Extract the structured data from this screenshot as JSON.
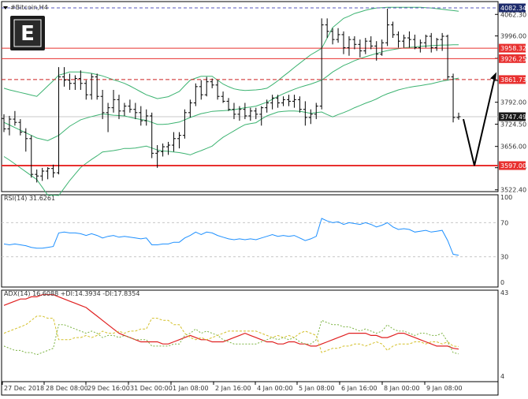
{
  "window": {
    "title": "#Bitcoin,H4"
  },
  "logo": {
    "letter": "E"
  },
  "colors": {
    "background": "#ffffff",
    "frame": "#000000",
    "grid": "#c8c8c8",
    "candle": "#000000",
    "bollinger": "#3cb371",
    "level_line": "#e8302f",
    "level_dashed": "#cc2222",
    "top_line": "#5555bb",
    "rsi_line": "#1e90ff",
    "adx_line": "#e02020",
    "di_plus": "#7cb342",
    "di_minus": "#d4c02a",
    "label_red": "#e8302f",
    "label_dark": "#1a1a1a",
    "label_navy": "#1c2a6b",
    "arrow": "#000000"
  },
  "chart_data": [
    {
      "type": "candlestick",
      "title": "#Bitcoin,H4",
      "ylim": [
        3500,
        4100
      ],
      "y_ticks": [
        "4062.30",
        "3996.00",
        "3927.00",
        "3858.75",
        "3792.00",
        "3724.50",
        "3656.00",
        "3590.50",
        "3522.40"
      ],
      "x_ticks": [
        "27 Dec 2018",
        "28 Dec 08:00",
        "29 Dec 16:00",
        "31 Dec 00:00",
        "1 Jan 08:00",
        "2 Jan 16:00",
        "4 Jan 00:00",
        "5 Jan 08:00",
        "6 Jan 16:00",
        "8 Jan 00:00",
        "9 Jan 08:00"
      ],
      "ohlc": [
        [
          3742,
          3755,
          3700,
          3710
        ],
        [
          3710,
          3750,
          3690,
          3740
        ],
        [
          3740,
          3765,
          3720,
          3730
        ],
        [
          3730,
          3740,
          3690,
          3700
        ],
        [
          3700,
          3712,
          3640,
          3680
        ],
        [
          3680,
          3690,
          3560,
          3570
        ],
        [
          3570,
          3585,
          3545,
          3565
        ],
        [
          3565,
          3590,
          3550,
          3580
        ],
        [
          3580,
          3592,
          3555,
          3588
        ],
        [
          3588,
          3600,
          3560,
          3575
        ],
        [
          3575,
          3900,
          3570,
          3870
        ],
        [
          3870,
          3900,
          3840,
          3860
        ],
        [
          3860,
          3880,
          3830,
          3850
        ],
        [
          3850,
          3875,
          3830,
          3865
        ],
        [
          3865,
          3890,
          3830,
          3850
        ],
        [
          3850,
          3860,
          3800,
          3815
        ],
        [
          3815,
          3880,
          3800,
          3870
        ],
        [
          3870,
          3880,
          3800,
          3810
        ],
        [
          3810,
          3830,
          3740,
          3760
        ],
        [
          3760,
          3790,
          3700,
          3775
        ],
        [
          3775,
          3830,
          3760,
          3800
        ],
        [
          3800,
          3815,
          3740,
          3765
        ],
        [
          3765,
          3790,
          3750,
          3780
        ],
        [
          3780,
          3800,
          3760,
          3770
        ],
        [
          3770,
          3790,
          3740,
          3760
        ],
        [
          3760,
          3780,
          3720,
          3735
        ],
        [
          3735,
          3770,
          3720,
          3750
        ],
        [
          3750,
          3760,
          3620,
          3635
        ],
        [
          3635,
          3660,
          3590,
          3640
        ],
        [
          3640,
          3665,
          3625,
          3655
        ],
        [
          3655,
          3670,
          3630,
          3660
        ],
        [
          3660,
          3700,
          3640,
          3680
        ],
        [
          3680,
          3700,
          3650,
          3690
        ],
        [
          3690,
          3770,
          3680,
          3760
        ],
        [
          3760,
          3800,
          3745,
          3790
        ],
        [
          3790,
          3850,
          3780,
          3840
        ],
        [
          3840,
          3860,
          3800,
          3815
        ],
        [
          3815,
          3870,
          3810,
          3855
        ],
        [
          3855,
          3865,
          3835,
          3845
        ],
        [
          3845,
          3860,
          3800,
          3810
        ],
        [
          3810,
          3825,
          3790,
          3795
        ],
        [
          3795,
          3805,
          3765,
          3770
        ],
        [
          3770,
          3790,
          3740,
          3755
        ],
        [
          3755,
          3780,
          3735,
          3770
        ],
        [
          3770,
          3790,
          3740,
          3750
        ],
        [
          3750,
          3775,
          3735,
          3765
        ],
        [
          3765,
          3775,
          3740,
          3755
        ],
        [
          3755,
          3780,
          3720,
          3775
        ],
        [
          3775,
          3800,
          3760,
          3790
        ],
        [
          3790,
          3815,
          3770,
          3805
        ],
        [
          3805,
          3815,
          3775,
          3790
        ],
        [
          3790,
          3810,
          3780,
          3800
        ],
        [
          3800,
          3815,
          3780,
          3795
        ],
        [
          3795,
          3815,
          3775,
          3800
        ],
        [
          3800,
          3810,
          3760,
          3770
        ],
        [
          3770,
          3795,
          3720,
          3745
        ],
        [
          3745,
          3770,
          3725,
          3755
        ],
        [
          3755,
          3790,
          3740,
          3780
        ],
        [
          3780,
          4050,
          3770,
          4030
        ],
        [
          4030,
          4050,
          3990,
          4010
        ],
        [
          4010,
          4020,
          3970,
          3985
        ],
        [
          3985,
          4020,
          3975,
          4000
        ],
        [
          4000,
          4010,
          3940,
          3960
        ],
        [
          3960,
          3995,
          3935,
          3985
        ],
        [
          3985,
          3995,
          3955,
          3970
        ],
        [
          3970,
          3985,
          3930,
          3950
        ],
        [
          3950,
          3990,
          3940,
          3980
        ],
        [
          3980,
          3995,
          3955,
          3965
        ],
        [
          3965,
          3980,
          3920,
          3940
        ],
        [
          3940,
          3985,
          3935,
          3975
        ],
        [
          3975,
          4080,
          3965,
          4030
        ],
        [
          4030,
          4040,
          3990,
          4000
        ],
        [
          4000,
          4010,
          3960,
          3980
        ],
        [
          3980,
          4000,
          3960,
          3990
        ],
        [
          3990,
          4010,
          3960,
          3985
        ],
        [
          3985,
          4000,
          3955,
          3960
        ],
        [
          3960,
          3985,
          3945,
          3975
        ],
        [
          3975,
          4000,
          3960,
          3995
        ],
        [
          3995,
          4005,
          3945,
          3960
        ],
        [
          3960,
          3990,
          3950,
          3985
        ],
        [
          3985,
          4005,
          3950,
          3995
        ],
        [
          3995,
          4000,
          3860,
          3870
        ],
        [
          3870,
          3880,
          3730,
          3745
        ],
        [
          3745,
          3760,
          3738,
          3747.49
        ]
      ],
      "bollinger": {
        "upper": [
          3835,
          3830,
          3826,
          3822,
          3818,
          3814,
          3810,
          3826,
          3842,
          3858,
          3875,
          3880,
          3885,
          3885,
          3885,
          3883,
          3881,
          3877,
          3873,
          3867,
          3861,
          3856,
          3850,
          3842,
          3833,
          3824,
          3815,
          3809,
          3803,
          3806,
          3809,
          3817,
          3825,
          3843,
          3860,
          3866,
          3872,
          3872,
          3872,
          3860,
          3848,
          3840,
          3833,
          3830,
          3828,
          3829,
          3830,
          3832,
          3835,
          3846,
          3858,
          3872,
          3885,
          3899,
          3912,
          3925,
          3938,
          3948,
          3958,
          3990,
          4022,
          4036,
          4050,
          4057,
          4065,
          4070,
          4075,
          4079,
          4082,
          4083,
          4084,
          4084,
          4084,
          4084,
          4084,
          4084,
          4084,
          4083,
          4082,
          4080,
          4078,
          4076,
          4074,
          4072
        ],
        "middle": [
          3730,
          3722,
          3714,
          3706,
          3698,
          3690,
          3682,
          3678,
          3674,
          3682,
          3690,
          3704,
          3718,
          3728,
          3738,
          3743,
          3748,
          3752,
          3756,
          3754,
          3752,
          3751,
          3750,
          3746,
          3742,
          3739,
          3736,
          3730,
          3724,
          3724,
          3725,
          3728,
          3731,
          3738,
          3745,
          3751,
          3757,
          3760,
          3764,
          3765,
          3766,
          3767,
          3769,
          3772,
          3775,
          3777,
          3780,
          3786,
          3792,
          3801,
          3810,
          3818,
          3825,
          3832,
          3838,
          3843,
          3848,
          3854,
          3860,
          3872,
          3885,
          3895,
          3905,
          3912,
          3920,
          3926,
          3932,
          3937,
          3942,
          3947,
          3951,
          3954,
          3957,
          3959,
          3961,
          3962,
          3964,
          3965,
          3966,
          3967,
          3968,
          3968,
          3969,
          3969
        ],
        "lower": [
          3625,
          3614,
          3602,
          3590,
          3578,
          3566,
          3554,
          3530,
          3506,
          3506,
          3505,
          3528,
          3551,
          3571,
          3591,
          3604,
          3616,
          3627,
          3639,
          3641,
          3643,
          3646,
          3650,
          3650,
          3651,
          3654,
          3657,
          3651,
          3645,
          3642,
          3641,
          3639,
          3637,
          3634,
          3630,
          3637,
          3643,
          3650,
          3657,
          3671,
          3684,
          3694,
          3704,
          3714,
          3723,
          3726,
          3729,
          3740,
          3750,
          3756,
          3762,
          3764,
          3765,
          3765,
          3764,
          3761,
          3758,
          3760,
          3762,
          3754,
          3747,
          3754,
          3760,
          3767,
          3775,
          3782,
          3789,
          3795,
          3802,
          3811,
          3818,
          3824,
          3830,
          3834,
          3838,
          3841,
          3843,
          3846,
          3849,
          3853,
          3857,
          3860,
          3863,
          3866
        ]
      },
      "levels": [
        {
          "price": 4082.34,
          "label": "4082.34",
          "style": "dotted"
        },
        {
          "price": 3958.32,
          "label": "3958.32",
          "style": "solid"
        },
        {
          "price": 3926.25,
          "label": "3926.25",
          "style": "solid"
        },
        {
          "price": 3861.73,
          "label": "3861.73",
          "style": "dashed"
        },
        {
          "price": 3747.49,
          "label": "3747.49",
          "style": "current"
        },
        {
          "price": 3597.0,
          "label": "3597.00",
          "style": "solid"
        }
      ],
      "forecast": {
        "from": 3740,
        "via": 3597,
        "to": 3870
      }
    },
    {
      "type": "line",
      "title": "RSI(14)",
      "value_text": "31.6261",
      "ylim": [
        0,
        100
      ],
      "y_ticks": [
        "100",
        "70",
        "30",
        "0"
      ],
      "levels": [
        70,
        30
      ],
      "series": [
        {
          "name": "RSI(14)",
          "values": [
            45,
            44,
            45,
            44,
            43,
            41,
            40,
            40,
            41,
            42,
            58,
            59,
            58,
            58,
            57,
            55,
            57,
            55,
            52,
            54,
            55,
            53,
            54,
            53,
            52,
            51,
            52,
            44,
            44,
            45,
            45,
            47,
            47,
            52,
            55,
            59,
            56,
            59,
            58,
            55,
            53,
            51,
            50,
            51,
            50,
            51,
            50,
            52,
            54,
            56,
            54,
            55,
            54,
            55,
            52,
            49,
            51,
            54,
            75,
            72,
            70,
            71,
            68,
            70,
            69,
            68,
            70,
            68,
            65,
            67,
            70,
            65,
            62,
            63,
            62,
            59,
            60,
            61,
            59,
            60,
            61,
            49,
            33,
            31.63
          ]
        }
      ]
    },
    {
      "type": "line",
      "title": "ADX(14) 16.6088 +DI:14.3934 -DI:17.8354",
      "ylim": [
        4,
        43
      ],
      "y_ticks": [
        "43",
        "4"
      ],
      "series": [
        {
          "name": "ADX(14)",
          "values": [
            37,
            38,
            39,
            40,
            40,
            41,
            41,
            42,
            42,
            42,
            41,
            40,
            39,
            38,
            37,
            36,
            34,
            32,
            30,
            28,
            26,
            24,
            23,
            22,
            21,
            20,
            20,
            20,
            20,
            19,
            19,
            20,
            21,
            22,
            23,
            22,
            21,
            21,
            20,
            20,
            20,
            21,
            22,
            23,
            24,
            23,
            22,
            21,
            20,
            20,
            19,
            19,
            20,
            20,
            19,
            19,
            18,
            18,
            19,
            20,
            21,
            22,
            23,
            24,
            24,
            24,
            24,
            23,
            23,
            22,
            22,
            23,
            24,
            24,
            23,
            22,
            21,
            20,
            19,
            18,
            18,
            18,
            17,
            16.61
          ]
        },
        {
          "name": "+DI",
          "values": [
            18,
            17,
            16,
            16,
            15,
            15,
            14,
            15,
            16,
            17,
            28,
            28,
            27,
            26,
            25,
            24,
            25,
            24,
            22,
            23,
            23,
            22,
            23,
            22,
            21,
            21,
            21,
            18,
            18,
            18,
            18,
            19,
            19,
            23,
            24,
            26,
            24,
            25,
            24,
            23,
            21,
            20,
            19,
            19,
            19,
            19,
            19,
            20,
            21,
            22,
            21,
            22,
            21,
            22,
            20,
            19,
            19,
            21,
            30,
            29,
            28,
            28,
            27,
            27,
            26,
            25,
            26,
            25,
            24,
            25,
            28,
            26,
            25,
            25,
            24,
            23,
            24,
            24,
            23,
            23,
            24,
            20,
            15,
            14.39
          ]
        },
        {
          "name": "-DI",
          "values": [
            24,
            25,
            26,
            27,
            28,
            30,
            32,
            32,
            31,
            31,
            21,
            21,
            21,
            22,
            22,
            23,
            22,
            23,
            25,
            24,
            24,
            25,
            24,
            25,
            25,
            26,
            26,
            31,
            31,
            30,
            30,
            28,
            28,
            24,
            22,
            21,
            22,
            21,
            22,
            23,
            24,
            25,
            25,
            25,
            25,
            25,
            25,
            24,
            23,
            22,
            23,
            22,
            23,
            22,
            24,
            25,
            24,
            23,
            15,
            16,
            17,
            17,
            18,
            18,
            19,
            19,
            18,
            19,
            20,
            19,
            16,
            18,
            19,
            19,
            19,
            20,
            20,
            19,
            20,
            20,
            19,
            20,
            18,
            17.84
          ]
        }
      ]
    }
  ]
}
